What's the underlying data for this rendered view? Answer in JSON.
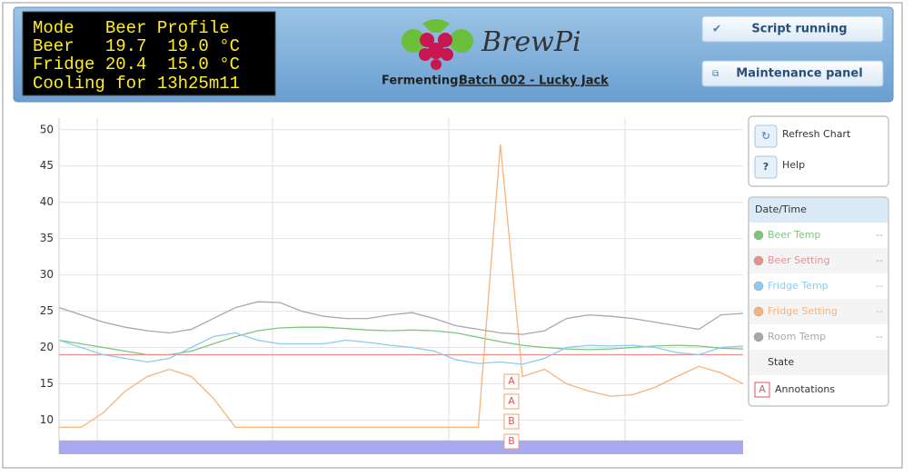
{
  "lcd": [
    "Mode   Beer Profile",
    "Beer   19.7  19.0 °C",
    "Fridge 20.4  15.0 °C",
    "Cooling for 13h25m11"
  ],
  "logo_text": "BrewPi",
  "fermenting_label": "Fermenting:",
  "batch_link": "Batch 002 - Lucky Jack",
  "buttons": [
    "Script running",
    "Maintenance panel"
  ],
  "chart_controls": {
    "refresh": "Refresh Chart",
    "help_icon": "?",
    "help": "Help"
  },
  "legend": {
    "header": "Date/Time",
    "readouts": [
      "--",
      "--",
      "--",
      "--",
      "--"
    ],
    "state": "State",
    "annotations_icon": "A",
    "annotations": "Annotations"
  },
  "chart_data": {
    "type": "line",
    "ylim": [
      5.3,
      51.6
    ],
    "yticks": [
      10,
      15,
      20,
      25,
      30,
      35,
      40,
      45,
      50
    ],
    "grid": true,
    "series": [
      {
        "name": "Beer Temp",
        "color": "#7cc67c",
        "values": [
          21,
          20.5,
          20,
          19.5,
          19,
          19,
          19.5,
          20.5,
          21.5,
          22.3,
          22.7,
          22.8,
          22.8,
          22.6,
          22.4,
          22.3,
          22.4,
          22.3,
          22,
          21.4,
          20.8,
          20.3,
          20,
          19.8,
          19.7,
          19.8,
          20,
          20.2,
          20.3,
          20.2,
          19.9,
          19.8
        ]
      },
      {
        "name": "Beer Setting",
        "color": "#e8908e",
        "values": [
          19,
          19,
          19,
          19,
          19,
          19,
          19,
          19,
          19,
          19,
          19,
          19,
          19,
          19,
          19,
          19,
          19,
          19,
          19,
          19,
          19,
          19,
          19,
          19,
          19,
          19,
          19,
          19,
          19,
          19,
          19,
          19
        ]
      },
      {
        "name": "Fridge Temp",
        "color": "#8ccbef",
        "values": [
          21,
          20,
          19,
          18.5,
          18,
          18.5,
          20,
          21.5,
          22,
          21,
          20.5,
          20.5,
          20.5,
          21,
          20.7,
          20.3,
          20,
          19.5,
          18.3,
          17.8,
          18,
          17.7,
          18.5,
          20,
          20.3,
          20.2,
          20.3,
          20,
          19.3,
          19,
          20,
          20.2
        ]
      },
      {
        "name": "Fridge Setting",
        "color": "#f6b37c",
        "values": [
          9,
          9,
          11,
          14,
          16,
          17,
          16,
          13,
          9,
          9,
          9,
          9,
          9,
          9,
          9,
          9,
          9,
          9,
          9,
          9,
          48,
          16,
          17,
          15,
          14,
          13.3,
          13.5,
          14.5,
          16,
          17.4,
          16.5,
          15
        ]
      },
      {
        "name": "Room Temp",
        "color": "#a8a8a8",
        "values": [
          25.5,
          24.5,
          23.5,
          22.8,
          22.3,
          22,
          22.5,
          24,
          25.5,
          26.3,
          26.2,
          25,
          24.3,
          24,
          24,
          24.5,
          24.8,
          24,
          23,
          22.5,
          22,
          21.8,
          22.3,
          24,
          24.5,
          24.3,
          24,
          23.5,
          23,
          22.5,
          24.5,
          24.7
        ]
      }
    ],
    "annotations": [
      "A",
      "A",
      "B",
      "B"
    ]
  }
}
